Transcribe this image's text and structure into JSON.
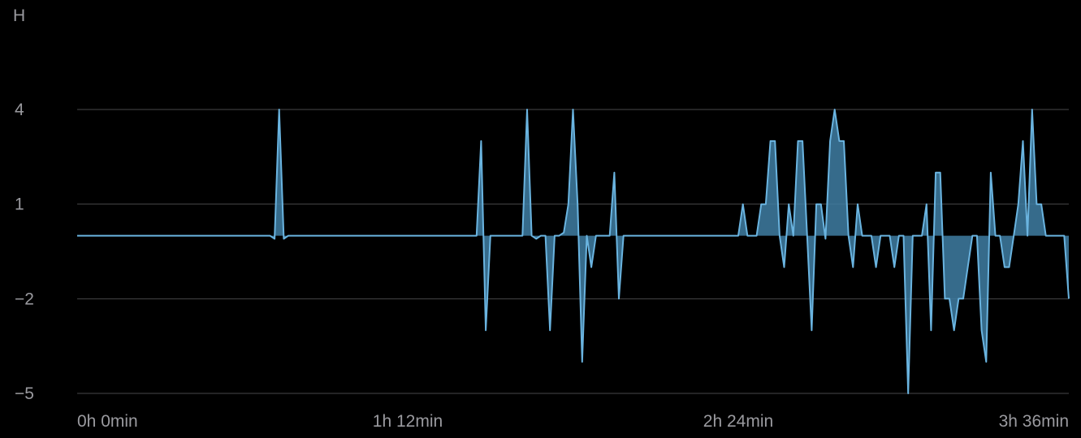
{
  "unit_label": "H",
  "colors": {
    "background": "#000000",
    "grid": "#48484a",
    "text": "#9a9a9f",
    "line": "#6ab4e0",
    "fill": "#3f7ea3"
  },
  "chart_data": {
    "type": "area",
    "title": "",
    "xlabel": "",
    "ylabel": "H",
    "grid": true,
    "legend": "none",
    "xlim": [
      "0h 0min",
      "3h 36min"
    ],
    "y_ticks": [
      4,
      1,
      -2,
      -5
    ],
    "x_ticks": [
      "0h 0min",
      "1h 12min",
      "2h 24min",
      "3h 36min"
    ],
    "series": [
      {
        "points": [
          [
            "0h 0min",
            0
          ],
          [
            "0h 42min",
            0
          ],
          [
            "0h 43min",
            -0.1
          ],
          [
            "0h 44min",
            4
          ],
          [
            "0h 45min",
            -0.1
          ],
          [
            "0h 46min",
            0
          ],
          [
            "1h 26min",
            0
          ],
          [
            "1h 27min",
            0
          ],
          [
            "1h 28min",
            3
          ],
          [
            "1h 29min",
            -3
          ],
          [
            "1h 30min",
            0
          ],
          [
            "1h 37min",
            0
          ],
          [
            "1h 38min",
            4
          ],
          [
            "1h 39min",
            0
          ],
          [
            "1h 40min",
            -0.1
          ],
          [
            "1h 41min",
            0
          ],
          [
            "1h 42min",
            0
          ],
          [
            "1h 43min",
            -3
          ],
          [
            "1h 44min",
            0
          ],
          [
            "1h 45min",
            0
          ],
          [
            "1h 46min",
            0.1
          ],
          [
            "1h 47min",
            1
          ],
          [
            "1h 48min",
            4
          ],
          [
            "1h 49min",
            1
          ],
          [
            "1h 50min",
            -4
          ],
          [
            "1h 51min",
            0
          ],
          [
            "1h 52min",
            -1
          ],
          [
            "1h 53min",
            0
          ],
          [
            "1h 56min",
            0
          ],
          [
            "1h 57min",
            2
          ],
          [
            "1h 58min",
            -2
          ],
          [
            "1h 59min",
            0
          ],
          [
            "2h 24min",
            0
          ],
          [
            "2h 25min",
            1
          ],
          [
            "2h 26min",
            0
          ],
          [
            "2h 27min",
            0
          ],
          [
            "2h 28min",
            0
          ],
          [
            "2h 29min",
            1
          ],
          [
            "2h 30min",
            1
          ],
          [
            "2h 31min",
            3
          ],
          [
            "2h 32min",
            3
          ],
          [
            "2h 33min",
            0
          ],
          [
            "2h 34min",
            -1
          ],
          [
            "2h 35min",
            1
          ],
          [
            "2h 36min",
            0
          ],
          [
            "2h 37min",
            3
          ],
          [
            "2h 38min",
            3
          ],
          [
            "2h 39min",
            0
          ],
          [
            "2h 40min",
            -3
          ],
          [
            "2h 41min",
            1
          ],
          [
            "2h 42min",
            1
          ],
          [
            "2h 43min",
            -0.1
          ],
          [
            "2h 44min",
            3
          ],
          [
            "2h 45min",
            4
          ],
          [
            "2h 46min",
            3
          ],
          [
            "2h 47min",
            3
          ],
          [
            "2h 48min",
            0
          ],
          [
            "2h 49min",
            -1
          ],
          [
            "2h 50min",
            1
          ],
          [
            "2h 51min",
            0
          ],
          [
            "2h 53min",
            0
          ],
          [
            "2h 54min",
            -1
          ],
          [
            "2h 55min",
            0
          ],
          [
            "2h 57min",
            0
          ],
          [
            "2h 58min",
            -1
          ],
          [
            "2h 59min",
            0
          ],
          [
            "3h 0min",
            0
          ],
          [
            "3h 1min",
            -5
          ],
          [
            "3h 2min",
            0
          ],
          [
            "3h 3min",
            0
          ],
          [
            "3h 4min",
            0
          ],
          [
            "3h 5min",
            1
          ],
          [
            "3h 6min",
            -3
          ],
          [
            "3h 7min",
            2
          ],
          [
            "3h 8min",
            2
          ],
          [
            "3h 9min",
            -2
          ],
          [
            "3h 10min",
            -2
          ],
          [
            "3h 11min",
            -3
          ],
          [
            "3h 12min",
            -2
          ],
          [
            "3h 13min",
            -2
          ],
          [
            "3h 14min",
            -1
          ],
          [
            "3h 15min",
            0
          ],
          [
            "3h 16min",
            0
          ],
          [
            "3h 17min",
            -3
          ],
          [
            "3h 18min",
            -4
          ],
          [
            "3h 19min",
            2
          ],
          [
            "3h 20min",
            0
          ],
          [
            "3h 21min",
            0
          ],
          [
            "3h 22min",
            -1
          ],
          [
            "3h 23min",
            -1
          ],
          [
            "3h 24min",
            0
          ],
          [
            "3h 25min",
            1
          ],
          [
            "3h 26min",
            3
          ],
          [
            "3h 27min",
            0
          ],
          [
            "3h 28min",
            4
          ],
          [
            "3h 29min",
            1
          ],
          [
            "3h 30min",
            1
          ],
          [
            "3h 31min",
            0
          ],
          [
            "3h 33min",
            0
          ],
          [
            "3h 35min",
            0
          ],
          [
            "3h 36min",
            -2
          ]
        ]
      }
    ]
  }
}
